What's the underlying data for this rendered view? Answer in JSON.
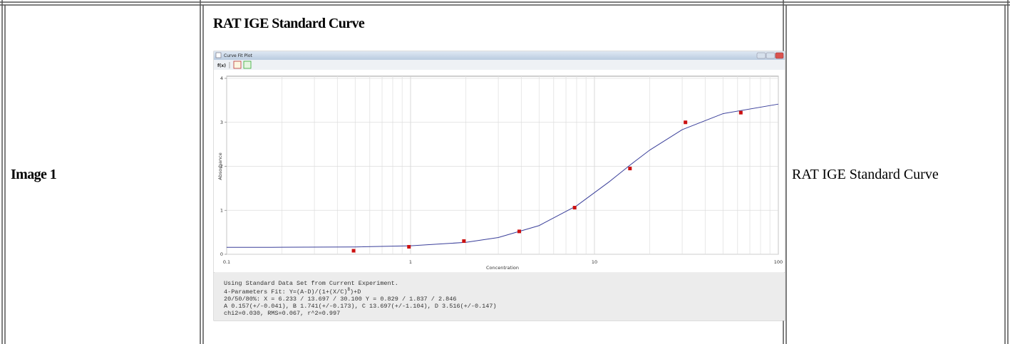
{
  "table": {
    "rows": [
      {
        "label": "Image 1",
        "title": "RAT IGE Standard Curve",
        "caption": "RAT IGE Standard Curve"
      }
    ]
  },
  "window": {
    "title": "Curve Fit Plot",
    "toolbar_label": "f(x)"
  },
  "chart_data": {
    "type": "scatter",
    "x_label": "Concentration",
    "y_label": "Absorbance",
    "xlim": [
      0.1,
      100
    ],
    "xticks": [
      0.1,
      1,
      10,
      100
    ],
    "log_x": true,
    "ylim": [
      0,
      4
    ],
    "yticks": [
      0,
      1,
      2,
      3,
      4
    ],
    "grid": true,
    "series": [
      {
        "style": "markers",
        "color": "#cc1111",
        "x": [
          0.49,
          0.98,
          1.95,
          3.9,
          7.8,
          15.6,
          31.25,
          62.5
        ],
        "values": [
          0.08,
          0.17,
          0.3,
          0.52,
          1.06,
          1.95,
          3.0,
          3.22
        ]
      },
      {
        "style": "line",
        "color": "#3a3f9a",
        "x": [
          0.1,
          0.2,
          0.5,
          1,
          2,
          3,
          5,
          8,
          12,
          16,
          20,
          30,
          50,
          100
        ],
        "values": [
          0.158,
          0.159,
          0.167,
          0.192,
          0.271,
          0.38,
          0.652,
          1.103,
          1.645,
          2.062,
          2.37,
          2.833,
          3.197,
          3.414
        ]
      }
    ]
  },
  "fit_report": {
    "line1": "Using Standard Data Set from Current Experiment.",
    "fit_prefix": "4-Parameters Fit: Y=(A-D)/(1+(X/C)",
    "fit_exponent": "B",
    "fit_suffix": ")+D",
    "line3": "20/50/80%: X = 6.233 / 13.697 / 30.100 Y = 0.829 / 1.837 / 2.846",
    "line4": "A 0.157(+/-0.041), B 1.741(+/-0.173), C 13.697(+/-1.104), D 3.516(+/-0.147)",
    "line5": "chi2=0.030, RMS=0.067, r^2=0.997"
  }
}
